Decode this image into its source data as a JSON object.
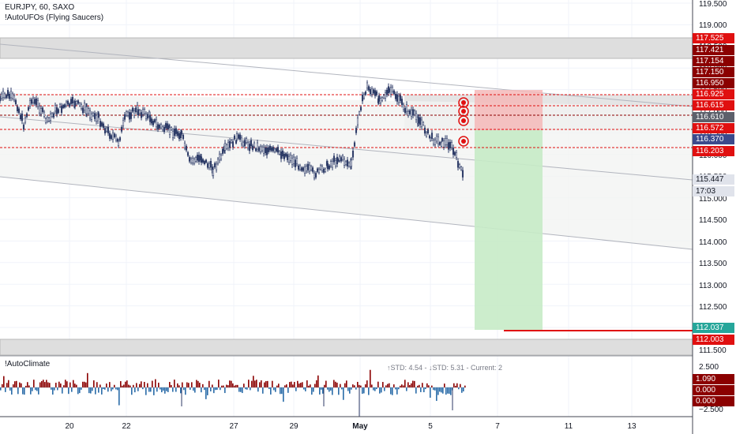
{
  "header": {
    "symbol_line": "EURJPY, 60, SAXO",
    "indicator_name": "!AutoUFOs (Flying Saucers)"
  },
  "sub_pane": {
    "indicator_name": "!AutoClimate",
    "stats_line": "↑STD: 4.54 - ↓STD: 5.31 - Current: 2"
  },
  "price_axis": {
    "ticks": [
      "119.500",
      "119.000",
      "118.500",
      "118.000",
      "117.500",
      "117.000",
      "116.500",
      "116.000",
      "115.500",
      "115.000",
      "114.500",
      "114.000",
      "113.500",
      "113.000",
      "112.500",
      "112.000",
      "111.500"
    ],
    "tags": [
      {
        "text": "117.525",
        "color": "#e01010"
      },
      {
        "text": "117.421",
        "color": "#8b0000"
      },
      {
        "text": "117.154",
        "color": "#8b0000"
      },
      {
        "text": "117.150",
        "color": "#8b0000"
      },
      {
        "text": "116.950",
        "color": "#8b0000"
      },
      {
        "text": "116.925",
        "color": "#e01010"
      },
      {
        "text": "116.615",
        "color": "#e01010"
      },
      {
        "text": "116.610",
        "color": "#5d606b"
      },
      {
        "text": "116.572",
        "color": "#e01010"
      },
      {
        "text": "116.370",
        "color": "#3c4a8c"
      },
      {
        "text": "116.203",
        "color": "#e01010"
      },
      {
        "text": "115.447",
        "color": "#e0e3eb"
      },
      {
        "text": "17:03",
        "color": "#e0e3eb"
      },
      {
        "text": "112.037",
        "color": "#26a69a"
      },
      {
        "text": "112.003",
        "color": "#e01010"
      }
    ]
  },
  "osc_axis": {
    "ticks": [
      "2.500",
      "−2.500"
    ],
    "tags": [
      {
        "text": "1.090",
        "color": "#8b0000"
      },
      {
        "text": "0.000",
        "color": "#8b0000"
      },
      {
        "text": "0.000",
        "color": "#8b0000"
      }
    ]
  },
  "time_axis": {
    "labels": [
      "20",
      "22",
      "27",
      "29",
      "May",
      "5",
      "7",
      "11",
      "13"
    ]
  },
  "colors": {
    "level_line": "#e01010",
    "zone_gray": "#c8c8c8",
    "stop_zone": "#f4b9b9",
    "target_zone": "#c6ebc6",
    "candle": "#2c3a66",
    "osc_up": "#8b0000",
    "osc_down": "#2a6ca8"
  }
}
